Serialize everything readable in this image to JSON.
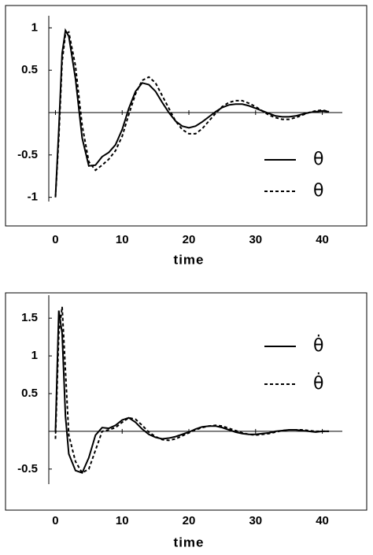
{
  "chart_data": [
    {
      "type": "line",
      "xlabel": "time",
      "xlim": [
        -1,
        43
      ],
      "ylim": [
        -1.05,
        1.05
      ],
      "xticks": [
        0,
        10,
        20,
        30,
        40
      ],
      "yticks": [
        -1,
        -0.5,
        0.5,
        1
      ],
      "legend": "lower right",
      "x": [
        0,
        0.5,
        1,
        1.5,
        2,
        3,
        4,
        5,
        6,
        7,
        8,
        9,
        10,
        11,
        12,
        13,
        14,
        15,
        16,
        17,
        18,
        19,
        20,
        21,
        22,
        23,
        24,
        25,
        26,
        27,
        28,
        29,
        30,
        31,
        32,
        33,
        34,
        35,
        36,
        37,
        38,
        39,
        40,
        41
      ],
      "series": [
        {
          "name": "θ",
          "color": "#000000",
          "linestyle": "solid",
          "values": [
            -1,
            -0.2,
            0.7,
            0.97,
            0.9,
            0.4,
            -0.3,
            -0.63,
            -0.62,
            -0.52,
            -0.47,
            -0.38,
            -0.2,
            0.05,
            0.25,
            0.35,
            0.33,
            0.25,
            0.12,
            0,
            -0.1,
            -0.16,
            -0.18,
            -0.16,
            -0.11,
            -0.05,
            0.01,
            0.06,
            0.09,
            0.1,
            0.1,
            0.08,
            0.05,
            0.02,
            -0.01,
            -0.04,
            -0.05,
            -0.05,
            -0.04,
            -0.02,
            0,
            0.01,
            0.02,
            0.01
          ]
        },
        {
          "name": "θ",
          "color": "#000000",
          "linestyle": "dotted",
          "values": [
            -1,
            -0.3,
            0.6,
            0.93,
            0.95,
            0.55,
            -0.15,
            -0.58,
            -0.68,
            -0.62,
            -0.55,
            -0.45,
            -0.28,
            -0.02,
            0.22,
            0.38,
            0.42,
            0.35,
            0.2,
            0.05,
            -0.1,
            -0.2,
            -0.25,
            -0.25,
            -0.19,
            -0.1,
            -0.01,
            0.07,
            0.12,
            0.14,
            0.14,
            0.11,
            0.07,
            0.02,
            -0.03,
            -0.06,
            -0.08,
            -0.08,
            -0.06,
            -0.03,
            0,
            0.02,
            0.03,
            0.01
          ]
        }
      ]
    },
    {
      "type": "line",
      "xlabel": "time",
      "xlim": [
        -1,
        43
      ],
      "ylim": [
        -0.7,
        1.7
      ],
      "xticks": [
        0,
        10,
        20,
        30,
        40
      ],
      "yticks": [
        -0.5,
        0.5,
        1,
        1.5
      ],
      "legend": "upper right",
      "x": [
        0,
        0.5,
        1,
        1.5,
        2,
        3,
        4,
        5,
        6,
        7,
        8,
        9,
        10,
        11,
        12,
        13,
        14,
        15,
        16,
        17,
        18,
        19,
        20,
        21,
        22,
        23,
        24,
        25,
        26,
        27,
        28,
        29,
        30,
        31,
        32,
        33,
        34,
        35,
        36,
        37,
        38,
        39,
        40,
        41
      ],
      "series": [
        {
          "name": "θ̇",
          "color": "#000000",
          "linestyle": "solid",
          "values": [
            0,
            1.6,
            1.3,
            0.2,
            -0.3,
            -0.52,
            -0.55,
            -0.35,
            -0.05,
            0.05,
            0.04,
            0.08,
            0.15,
            0.18,
            0.12,
            0.03,
            -0.04,
            -0.08,
            -0.1,
            -0.09,
            -0.07,
            -0.04,
            -0.01,
            0.03,
            0.06,
            0.07,
            0.07,
            0.05,
            0.02,
            -0.01,
            -0.03,
            -0.04,
            -0.04,
            -0.03,
            -0.02,
            0,
            0.01,
            0.02,
            0.02,
            0.01,
            0,
            -0.01,
            0,
            0
          ]
        },
        {
          "name": "θ̇",
          "color": "#000000",
          "linestyle": "dotted",
          "values": [
            -0.1,
            1.3,
            1.65,
            0.8,
            -0.05,
            -0.4,
            -0.55,
            -0.5,
            -0.25,
            0,
            0.02,
            0.05,
            0.12,
            0.18,
            0.16,
            0.08,
            -0.01,
            -0.07,
            -0.11,
            -0.12,
            -0.1,
            -0.06,
            -0.02,
            0.02,
            0.05,
            0.07,
            0.08,
            0.07,
            0.04,
            0.01,
            -0.02,
            -0.04,
            -0.05,
            -0.04,
            -0.03,
            -0.01,
            0.01,
            0.02,
            0.02,
            0.02,
            0.01,
            0,
            0,
            0
          ]
        }
      ]
    }
  ]
}
